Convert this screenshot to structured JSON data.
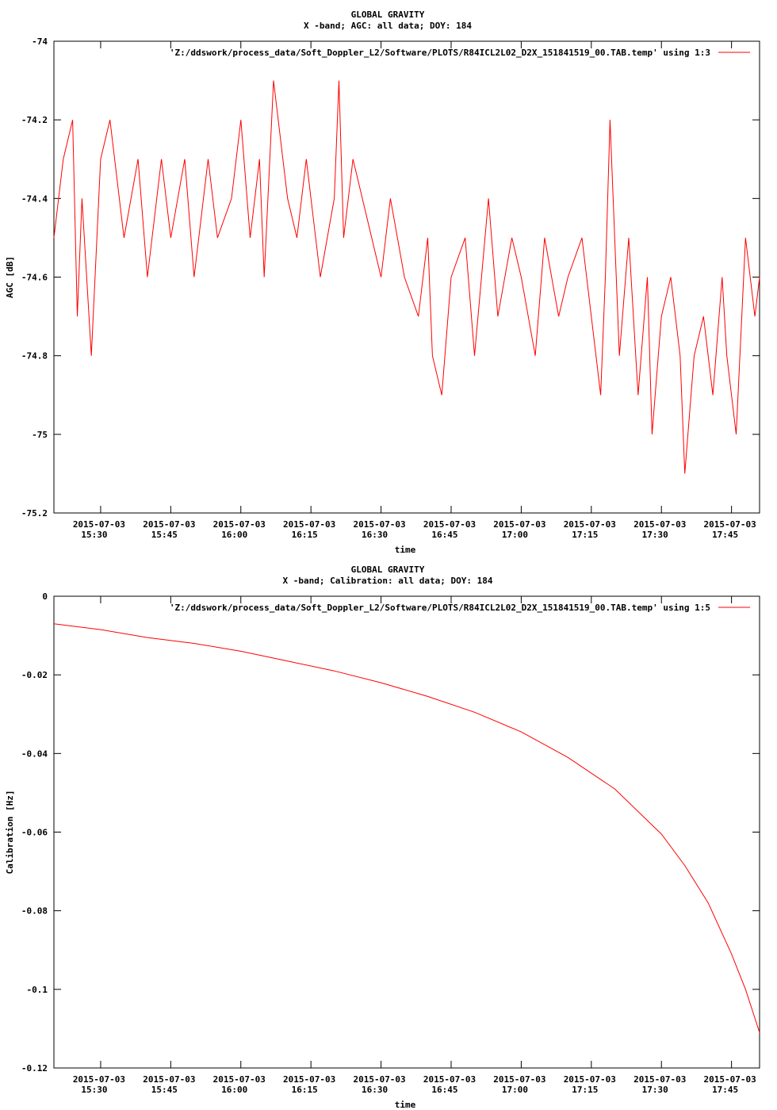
{
  "chart_data": [
    {
      "type": "line",
      "title": "GLOBAL GRAVITY",
      "subtitle": "X -band; AGC: all data; DOY: 184",
      "xlabel": "time",
      "ylabel": "AGC [dB]",
      "ylim": [
        -75.2,
        -74
      ],
      "yticks": [
        -74,
        -74.2,
        -74.4,
        -74.6,
        -74.8,
        -75,
        -75.2
      ],
      "ytick_labels": [
        "-74",
        "-74.2",
        "-74.4",
        "-74.6",
        "-74.8",
        "-75",
        "-75.2"
      ],
      "xlim": [
        "2015-07-03 15:20",
        "2015-07-03 17:51"
      ],
      "xticks": [
        "2015-07-03 15:30",
        "2015-07-03 15:45",
        "2015-07-03 16:00",
        "2015-07-03 16:15",
        "2015-07-03 16:30",
        "2015-07-03 16:45",
        "2015-07-03 17:00",
        "2015-07-03 17:15",
        "2015-07-03 17:30",
        "2015-07-03 17:45"
      ],
      "xtick_dates": [
        "2015-07-03",
        "2015-07-03",
        "2015-07-03",
        "2015-07-03",
        "2015-07-03",
        "2015-07-03",
        "2015-07-03",
        "2015-07-03",
        "2015-07-03",
        "2015-07-03"
      ],
      "xtick_times": [
        "15:30",
        "15:45",
        "16:00",
        "16:15",
        "16:30",
        "16:45",
        "17:00",
        "17:15",
        "17:30",
        "17:45"
      ],
      "grid": false,
      "legend_position": "top-right",
      "series": [
        {
          "name": "'Z:/ddswork/process_data/Soft_Doppler_L2/Software/PLOTS/R84ICL2L02_D2X_151841519_00.TAB.temp' using 1:3",
          "color": "#ff0000",
          "x": [
            "2015-07-03 15:20",
            "2015-07-03 15:22",
            "2015-07-03 15:24",
            "2015-07-03 15:25",
            "2015-07-03 15:26",
            "2015-07-03 15:28",
            "2015-07-03 15:30",
            "2015-07-03 15:32",
            "2015-07-03 15:35",
            "2015-07-03 15:38",
            "2015-07-03 15:40",
            "2015-07-03 15:43",
            "2015-07-03 15:45",
            "2015-07-03 15:48",
            "2015-07-03 15:50",
            "2015-07-03 15:53",
            "2015-07-03 15:55",
            "2015-07-03 15:58",
            "2015-07-03 16:00",
            "2015-07-03 16:02",
            "2015-07-03 16:04",
            "2015-07-03 16:05",
            "2015-07-03 16:07",
            "2015-07-03 16:10",
            "2015-07-03 16:12",
            "2015-07-03 16:14",
            "2015-07-03 16:17",
            "2015-07-03 16:20",
            "2015-07-03 16:21",
            "2015-07-03 16:22",
            "2015-07-03 16:24",
            "2015-07-03 16:26",
            "2015-07-03 16:28",
            "2015-07-03 16:30",
            "2015-07-03 16:32",
            "2015-07-03 16:35",
            "2015-07-03 16:38",
            "2015-07-03 16:40",
            "2015-07-03 16:41",
            "2015-07-03 16:43",
            "2015-07-03 16:45",
            "2015-07-03 16:48",
            "2015-07-03 16:50",
            "2015-07-03 16:53",
            "2015-07-03 16:55",
            "2015-07-03 16:58",
            "2015-07-03 17:00",
            "2015-07-03 17:03",
            "2015-07-03 17:05",
            "2015-07-03 17:08",
            "2015-07-03 17:10",
            "2015-07-03 17:13",
            "2015-07-03 17:15",
            "2015-07-03 17:17",
            "2015-07-03 17:18",
            "2015-07-03 17:19",
            "2015-07-03 17:21",
            "2015-07-03 17:23",
            "2015-07-03 17:25",
            "2015-07-03 17:27",
            "2015-07-03 17:28",
            "2015-07-03 17:30",
            "2015-07-03 17:32",
            "2015-07-03 17:34",
            "2015-07-03 17:35",
            "2015-07-03 17:37",
            "2015-07-03 17:39",
            "2015-07-03 17:41",
            "2015-07-03 17:43",
            "2015-07-03 17:44",
            "2015-07-03 17:46",
            "2015-07-03 17:48",
            "2015-07-03 17:50",
            "2015-07-03 17:51"
          ],
          "y": [
            -74.5,
            -74.3,
            -74.2,
            -74.7,
            -74.4,
            -74.8,
            -74.3,
            -74.2,
            -74.5,
            -74.3,
            -74.6,
            -74.3,
            -74.5,
            -74.3,
            -74.6,
            -74.3,
            -74.5,
            -74.4,
            -74.2,
            -74.5,
            -74.3,
            -74.6,
            -74.1,
            -74.4,
            -74.5,
            -74.3,
            -74.6,
            -74.4,
            -74.1,
            -74.5,
            -74.3,
            -74.4,
            -74.5,
            -74.6,
            -74.4,
            -74.6,
            -74.7,
            -74.5,
            -74.8,
            -74.9,
            -74.6,
            -74.5,
            -74.8,
            -74.4,
            -74.7,
            -74.5,
            -74.6,
            -74.8,
            -74.5,
            -74.7,
            -74.6,
            -74.5,
            -74.7,
            -74.9,
            -74.6,
            -74.2,
            -74.8,
            -74.5,
            -74.9,
            -74.6,
            -75,
            -74.7,
            -74.6,
            -74.8,
            -75.1,
            -74.8,
            -74.7,
            -74.9,
            -74.6,
            -74.8,
            -75,
            -74.5,
            -74.7,
            -74.6
          ]
        }
      ]
    },
    {
      "type": "line",
      "title": "GLOBAL GRAVITY",
      "subtitle": "X -band; Calibration: all data; DOY: 184",
      "xlabel": "time",
      "ylabel": "Calibration [Hz]",
      "ylim": [
        -0.12,
        0
      ],
      "yticks": [
        0,
        -0.02,
        -0.04,
        -0.06,
        -0.08,
        -0.1,
        -0.12
      ],
      "ytick_labels": [
        "0",
        "-0.02",
        "-0.04",
        "-0.06",
        "-0.08",
        "-0.1",
        "-0.12"
      ],
      "xlim": [
        "2015-07-03 15:20",
        "2015-07-03 17:51"
      ],
      "xticks": [
        "2015-07-03 15:30",
        "2015-07-03 15:45",
        "2015-07-03 16:00",
        "2015-07-03 16:15",
        "2015-07-03 16:30",
        "2015-07-03 16:45",
        "2015-07-03 17:00",
        "2015-07-03 17:15",
        "2015-07-03 17:30",
        "2015-07-03 17:45"
      ],
      "xtick_dates": [
        "2015-07-03",
        "2015-07-03",
        "2015-07-03",
        "2015-07-03",
        "2015-07-03",
        "2015-07-03",
        "2015-07-03",
        "2015-07-03",
        "2015-07-03",
        "2015-07-03"
      ],
      "xtick_times": [
        "15:30",
        "15:45",
        "16:00",
        "16:15",
        "16:30",
        "16:45",
        "17:00",
        "17:15",
        "17:30",
        "17:45"
      ],
      "grid": false,
      "legend_position": "top-right",
      "series": [
        {
          "name": "'Z:/ddswork/process_data/Soft_Doppler_L2/Software/PLOTS/R84ICL2L02_D2X_151841519_00.TAB.temp' using 1:5",
          "color": "#ff0000",
          "x": [
            "2015-07-03 15:20",
            "2015-07-03 15:30",
            "2015-07-03 15:40",
            "2015-07-03 15:50",
            "2015-07-03 16:00",
            "2015-07-03 16:10",
            "2015-07-03 16:20",
            "2015-07-03 16:30",
            "2015-07-03 16:40",
            "2015-07-03 16:50",
            "2015-07-03 17:00",
            "2015-07-03 17:10",
            "2015-07-03 17:20",
            "2015-07-03 17:30",
            "2015-07-03 17:35",
            "2015-07-03 17:40",
            "2015-07-03 17:45",
            "2015-07-03 17:48",
            "2015-07-03 17:51"
          ],
          "y": [
            -0.007,
            -0.0085,
            -0.0105,
            -0.012,
            -0.014,
            -0.0165,
            -0.019,
            -0.022,
            -0.0255,
            -0.0295,
            -0.0345,
            -0.041,
            -0.049,
            -0.0605,
            -0.0685,
            -0.078,
            -0.091,
            -0.1,
            -0.111
          ]
        }
      ]
    }
  ]
}
